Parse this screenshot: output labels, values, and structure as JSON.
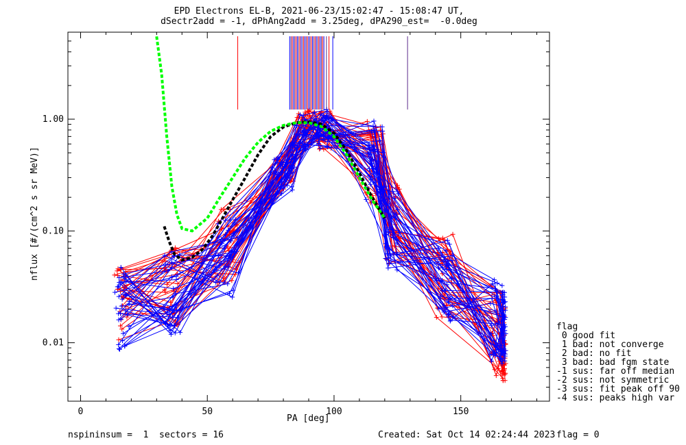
{
  "title_line1": "EPD Electrons EL-B, 2021-06-23/15:02:47 - 15:08:47 UT,",
  "title_line2": "dSectr2add = -1, dPhAng2add = 3.25deg, dPA290_est=  -0.0deg",
  "footer_left": "nspininsum =  1  sectors = 16",
  "footer_created": "Created: Sat Oct 14 02:24:44 2023",
  "footer_flag": "flag = 0",
  "legend": {
    "header": "flag",
    "items": [
      " 0 good fit",
      " 1 bad: not converge",
      " 2 bad: no fit",
      " 3 bad: bad fgm state",
      "-1 sus: far off median",
      "-2 sus: not symmetric",
      "-3 sus: fit peak off 90",
      "-4 sus: peaks high var"
    ]
  },
  "chart_data": {
    "type": "line",
    "xlabel": "PA [deg]",
    "ylabel": "nflux [#/(cm^2 s sr MeV)]",
    "xlim": [
      -5,
      185
    ],
    "ylim": [
      0.003,
      6.0
    ],
    "yscale": "log",
    "x_ticks": [
      0,
      50,
      100,
      150
    ],
    "y_ticks": [
      {
        "value": 0.01,
        "label": "0.01"
      },
      {
        "value": 0.1,
        "label": "0.10"
      },
      {
        "value": 1.0,
        "label": "1.00"
      }
    ],
    "pa_sectors": [
      14,
      19,
      33,
      39,
      54,
      62,
      76,
      84,
      94,
      99,
      113,
      120,
      126,
      141,
      147,
      162,
      167
    ],
    "series_colors": {
      "red": "#ff0000",
      "blue": "#0000ff",
      "green": "#00ff00",
      "black": "#000000",
      "marker_bar": "#5a2a8a"
    },
    "series": [
      {
        "name": "red",
        "count": 32,
        "template": [
          0.022,
          0.03,
          0.08,
          0.33,
          0.82,
          0.8,
          0.42,
          0.12,
          0.04,
          0.012,
          0.01
        ]
      },
      {
        "name": "blue",
        "count": 36,
        "template": [
          0.02,
          0.028,
          0.06,
          0.3,
          0.8,
          0.82,
          0.45,
          0.1,
          0.035,
          0.016,
          0.015
        ]
      },
      {
        "name": "green fit",
        "x": [
          30,
          32,
          34,
          36,
          38,
          40,
          44,
          50,
          55,
          60,
          65,
          70,
          75,
          80,
          85,
          90,
          95,
          100,
          105,
          110,
          115,
          120
        ],
        "y": [
          5.5,
          2.5,
          0.7,
          0.25,
          0.14,
          0.105,
          0.1,
          0.13,
          0.2,
          0.3,
          0.45,
          0.62,
          0.78,
          0.88,
          0.93,
          0.93,
          0.86,
          0.7,
          0.48,
          0.3,
          0.19,
          0.13
        ]
      },
      {
        "name": "black fit",
        "x": [
          33,
          35,
          37,
          40,
          44,
          48,
          52,
          56,
          60,
          65,
          70,
          75,
          80,
          85,
          90,
          95,
          100,
          105,
          110,
          115,
          120
        ],
        "y": [
          0.11,
          0.08,
          0.062,
          0.055,
          0.058,
          0.068,
          0.09,
          0.13,
          0.19,
          0.3,
          0.48,
          0.7,
          0.85,
          0.93,
          0.95,
          0.9,
          0.75,
          0.52,
          0.33,
          0.2,
          0.13
        ]
      }
    ],
    "spike_markers_x": [
      62,
      82.5,
      83,
      83.5,
      84,
      84.5,
      85,
      85.5,
      86,
      86.5,
      87,
      87.5,
      88,
      88.5,
      89,
      89.5,
      90,
      90.5,
      91,
      91.5,
      92,
      92.5,
      93,
      93.5,
      94,
      94.5,
      95,
      95.5,
      96,
      97,
      98,
      99.5,
      129
    ]
  }
}
